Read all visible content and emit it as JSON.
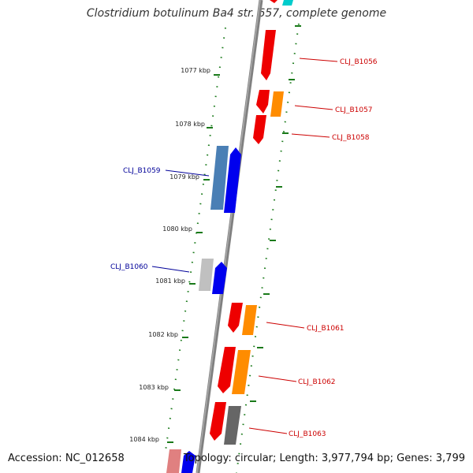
{
  "title": "Clostridium botulinum Ba4 str. 657, complete genome",
  "footer": {
    "accession": "Accession: NC_012658",
    "topology": "Topology: circular; Length: 3,977,794 bp; Genes: 3,799"
  },
  "colors": {
    "backbone": "#808080",
    "tick": "#1a7a1a",
    "forward_label": "#cc0000",
    "reverse_label": "#000099",
    "red": "#ee0000",
    "orange": "#ff8c00",
    "blue": "#0000ee",
    "steelblue": "#4a7fb5",
    "gray": "#666666",
    "lightgray": "#c0c0c0",
    "pink": "#e08080",
    "cyan": "#00cccc"
  },
  "ticks": [
    "1077 kbp",
    "1078 kbp",
    "1079 kbp",
    "1080 kbp",
    "1081 kbp",
    "1082 kbp",
    "1083 kbp",
    "1084 kbp"
  ],
  "gene_labels": [
    {
      "text": "CLJ_B1056",
      "strand": "forward"
    },
    {
      "text": "CLJ_B1057",
      "strand": "forward"
    },
    {
      "text": "CLJ_B1058",
      "strand": "forward"
    },
    {
      "text": "CLJ_B1059",
      "strand": "reverse"
    },
    {
      "text": "CLJ_B1060",
      "strand": "reverse"
    },
    {
      "text": "CLJ_B1061",
      "strand": "forward"
    },
    {
      "text": "CLJ_B1062",
      "strand": "forward"
    },
    {
      "text": "CLJ_B1063",
      "strand": "forward"
    }
  ]
}
